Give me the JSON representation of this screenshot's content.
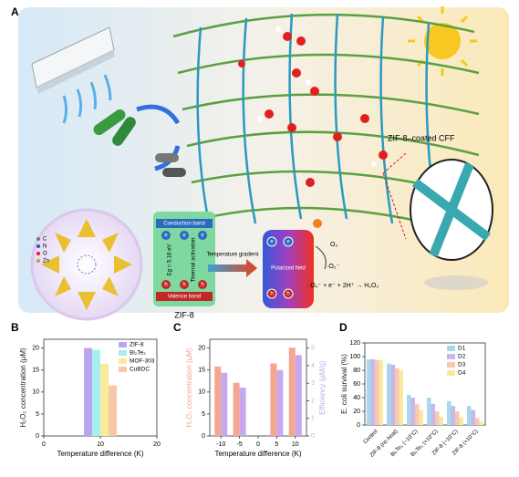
{
  "panel_labels": [
    "A",
    "B",
    "C",
    "D"
  ],
  "panel_a": {
    "coating_label": "ZIF-8–coated CFF",
    "material": "ZIF-8",
    "conduction_band": "Conduction band",
    "valence_band": "Valence band",
    "band_gap": "Eg = 5.16 eV",
    "activation": "Thermal activation",
    "gradient": "Temperature gradient",
    "field": "Polarized field",
    "oxygen": "O₂",
    "superoxide": "·O₂⁻",
    "reaction": "·O₂⁻ + e⁻ + 2H⁺ → H₂O₂",
    "electron": "e",
    "hole": "h",
    "atoms": [
      "C",
      "N",
      "O",
      "Zn"
    ]
  },
  "chart_data": [
    {
      "type": "bar",
      "x": [
        10
      ],
      "xlim": [
        0,
        20
      ],
      "xticks": [
        0,
        10,
        20
      ],
      "ylim": [
        0,
        22
      ],
      "yticks": [
        0,
        5,
        10,
        15,
        20
      ],
      "xlabel": "Temperature difference (K)",
      "ylabel": "H₂O₂ concentration (μM)",
      "legend": "upper right",
      "series": [
        {
          "name": "ZIF-8",
          "color": "#b9a6ec",
          "values": [
            20.0
          ]
        },
        {
          "name": "Bi₂Te₃",
          "color": "#a6eef0",
          "values": [
            19.6
          ]
        },
        {
          "name": "MOF-303",
          "color": "#f8ec9a",
          "values": [
            16.4
          ]
        },
        {
          "name": "CuBDC",
          "color": "#f8c7a6",
          "values": [
            11.5
          ]
        }
      ]
    },
    {
      "type": "bar",
      "x": [
        -10,
        -5,
        5,
        10
      ],
      "xlim": [
        -13,
        13
      ],
      "xticks": [
        -10,
        -5,
        0,
        5,
        10
      ],
      "ylim": [
        0,
        22
      ],
      "yticks": [
        0,
        5,
        10,
        15,
        20
      ],
      "y2lim": [
        0,
        5.5
      ],
      "y2ticks": [
        0,
        1,
        2,
        3,
        4,
        5
      ],
      "xlabel": "Temperature difference (K)",
      "ylabel": "H₂O₂ concentration (μM)",
      "y2label": "Efficiency (μM/g)",
      "series": [
        {
          "color": "#f4a68e",
          "values": [
            15.8,
            12.1,
            16.5,
            20.1
          ]
        },
        {
          "color": "#c7a8ee",
          "axis": "y2",
          "values": [
            3.6,
            2.75,
            3.75,
            4.6
          ]
        }
      ]
    },
    {
      "type": "bar",
      "categories": [
        "Control",
        "ZIF-8 (no heat)",
        "Bi₂Te₃ (−10°C)",
        "Bi₂Te₃ (+10°C)",
        "ZIF-8 (−10°C)",
        "ZIF-8 (+10°C)"
      ],
      "ylim": [
        0,
        120
      ],
      "yticks": [
        0,
        20,
        40,
        60,
        80,
        100,
        120
      ],
      "ylabel": "E. coli survival (%)",
      "legend": "upper right",
      "series": [
        {
          "name": "D1",
          "color": "#a8d8f0",
          "values": [
            96,
            90,
            44,
            40,
            35,
            28
          ]
        },
        {
          "name": "D2",
          "color": "#c8b8e8",
          "values": [
            96,
            88,
            40,
            31,
            28,
            22
          ]
        },
        {
          "name": "D3",
          "color": "#f8c8b0",
          "values": [
            95,
            83,
            31,
            20,
            20,
            10
          ]
        },
        {
          "name": "D4",
          "color": "#f8e8a0",
          "values": [
            95,
            80,
            22,
            12,
            11,
            5
          ]
        }
      ]
    }
  ]
}
